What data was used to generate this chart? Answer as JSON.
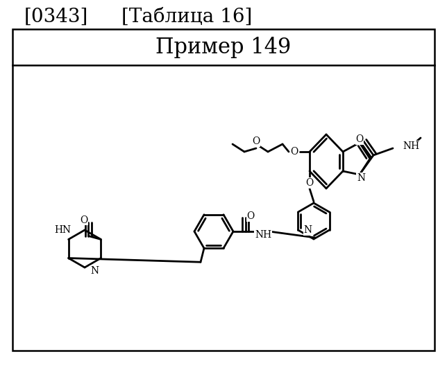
{
  "title_left": "[0343]",
  "title_right": "[Таблица 16]",
  "header": "Пример 149",
  "bg_color": "#ffffff",
  "border_color": "#000000",
  "title_fontsize": 20,
  "header_fontsize": 22
}
